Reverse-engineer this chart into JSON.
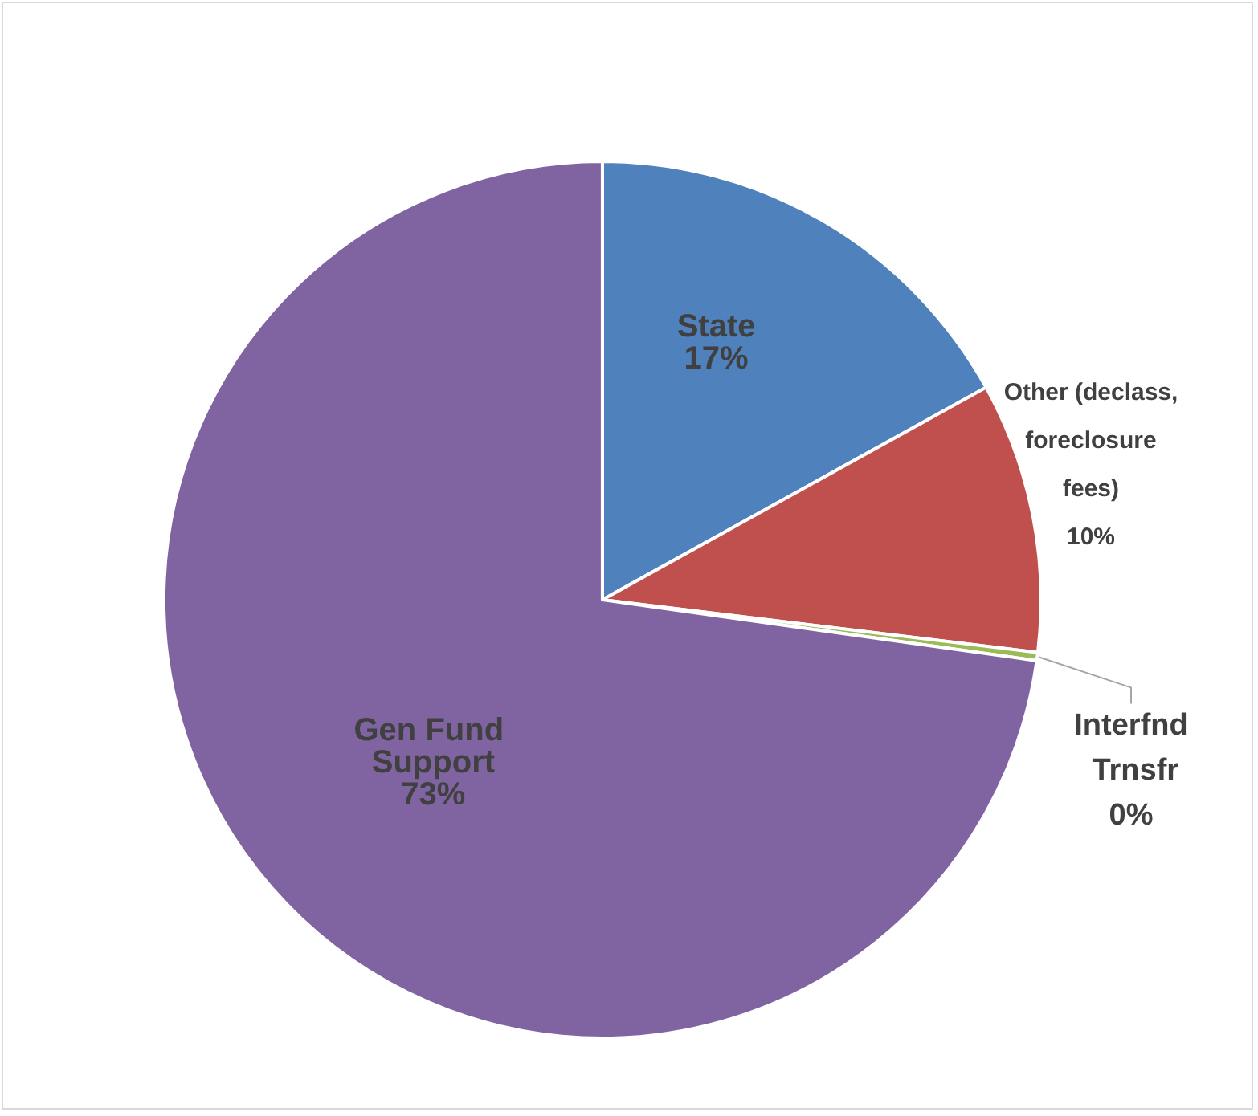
{
  "chart_data": {
    "type": "pie",
    "categories": [
      "State",
      "Other (declass, foreclosure fees)",
      "Interfnd Trnsfr",
      "Gen Fund Support"
    ],
    "values": [
      17,
      10,
      0.3,
      73
    ],
    "value_labels": [
      "17%",
      "10%",
      "0%",
      "73%"
    ],
    "colors": [
      "#4f81bd",
      "#c0504d",
      "#9bbb59",
      "#8064a2"
    ],
    "legend": false
  }
}
